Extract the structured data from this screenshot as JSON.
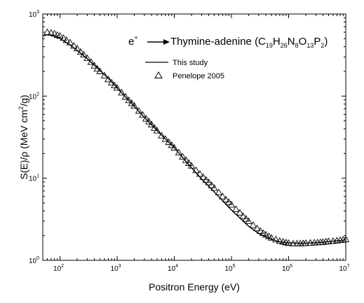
{
  "chart_data": {
    "type": "line",
    "xlabel": "Positron Energy (eV)",
    "ylabel_main": "S(E)/",
    "ylabel_rho": "ρ",
    "ylabel_unit_open": " (MeV cm",
    "ylabel_unit_sup": "2",
    "ylabel_unit_close": "/g)",
    "x_scale": "log",
    "y_scale": "log",
    "xlim": [
      50,
      10000000
    ],
    "ylim": [
      1,
      1000
    ],
    "x_ticks": [
      {
        "base": "10",
        "exp": "2",
        "value": 100
      },
      {
        "base": "10",
        "exp": "3",
        "value": 1000
      },
      {
        "base": "10",
        "exp": "4",
        "value": 10000
      },
      {
        "base": "10",
        "exp": "5",
        "value": 100000
      },
      {
        "base": "10",
        "exp": "6",
        "value": 1000000
      },
      {
        "base": "10",
        "exp": "7",
        "value": 10000000
      }
    ],
    "y_ticks": [
      {
        "base": "10",
        "exp": "0",
        "value": 1
      },
      {
        "base": "10",
        "exp": "1",
        "value": 10
      },
      {
        "base": "10",
        "exp": "2",
        "value": 100
      },
      {
        "base": "10",
        "exp": "3",
        "value": 1000
      }
    ],
    "annotation": {
      "particle": "e",
      "particle_sup": "+",
      "material": "Thymine-adenine (C",
      "f1": "19",
      "e2": "H",
      "f2": "26",
      "e3": "N",
      "f3": "8",
      "e4": "O",
      "f4": "13",
      "e5": "P",
      "f5": "2",
      "close": ")"
    },
    "legend": {
      "placement": "top-right",
      "entries": [
        {
          "label": "This study",
          "marker": "line"
        },
        {
          "label": "Penelope 2005",
          "marker": "open-triangle"
        }
      ]
    },
    "series": [
      {
        "name": "This study",
        "style": "solid-line",
        "x": [
          50,
          60,
          70,
          80,
          100,
          150,
          200,
          300,
          500,
          700,
          1000,
          2000,
          3000,
          5000,
          7000,
          10000,
          20000,
          30000,
          50000,
          100000,
          200000,
          300000,
          500000,
          700000,
          1000000,
          1500000,
          2000000,
          3000000,
          5000000,
          7000000,
          10000000
        ],
        "y": [
          540,
          560,
          555,
          540,
          505,
          420,
          360,
          285,
          205,
          165,
          125,
          75,
          55,
          38,
          30,
          23.5,
          13.4,
          9.8,
          6.8,
          4.1,
          2.6,
          2.12,
          1.8,
          1.68,
          1.63,
          1.61,
          1.62,
          1.64,
          1.69,
          1.73,
          1.77
        ]
      },
      {
        "name": "Penelope 2005",
        "style": "open-triangle",
        "x": [
          60,
          70,
          80,
          90,
          100,
          115,
          130,
          150,
          175,
          200,
          230,
          260,
          300,
          350,
          400,
          450,
          500,
          600,
          700,
          800,
          900,
          1000,
          1200,
          1400,
          1600,
          1800,
          2000,
          2400,
          2800,
          3200,
          3600,
          4000,
          4500,
          5000,
          6000,
          7000,
          8000,
          9000,
          10000,
          12000,
          14000,
          16000,
          18000,
          20000,
          24000,
          28000,
          32000,
          36000,
          40000,
          45000,
          50000,
          60000,
          70000,
          80000,
          90000,
          100000,
          120000,
          140000,
          160000,
          180000,
          200000,
          240000,
          280000,
          320000,
          360000,
          400000,
          450000,
          500000,
          600000,
          700000,
          800000,
          900000,
          1000000,
          1200000,
          1400000,
          1600000,
          1800000,
          2000000,
          2400000,
          2800000,
          3200000,
          3600000,
          4000000,
          4500000,
          5000000,
          6000000,
          7000000,
          8000000,
          9000000,
          10000000
        ],
        "y": [
          600,
          590,
          575,
          555,
          540,
          510,
          480,
          450,
          410,
          380,
          345,
          320,
          290,
          260,
          235,
          215,
          200,
          178,
          160,
          146,
          135,
          126,
          110,
          98,
          89,
          82,
          76,
          66,
          59,
          53,
          49,
          45,
          41,
          38,
          33,
          30,
          27.5,
          25.3,
          23.5,
          20.5,
          18.3,
          16.6,
          15.3,
          14.2,
          12.5,
          11.3,
          10.3,
          9.5,
          8.9,
          8.2,
          7.6,
          6.7,
          6.0,
          5.5,
          5.1,
          4.75,
          4.2,
          3.8,
          3.45,
          3.2,
          3.0,
          2.68,
          2.45,
          2.28,
          2.15,
          2.05,
          1.96,
          1.88,
          1.79,
          1.72,
          1.68,
          1.65,
          1.62,
          1.6,
          1.6,
          1.6,
          1.61,
          1.62,
          1.63,
          1.64,
          1.65,
          1.66,
          1.67,
          1.69,
          1.7,
          1.72,
          1.74,
          1.76,
          1.78,
          1.8
        ]
      }
    ]
  }
}
